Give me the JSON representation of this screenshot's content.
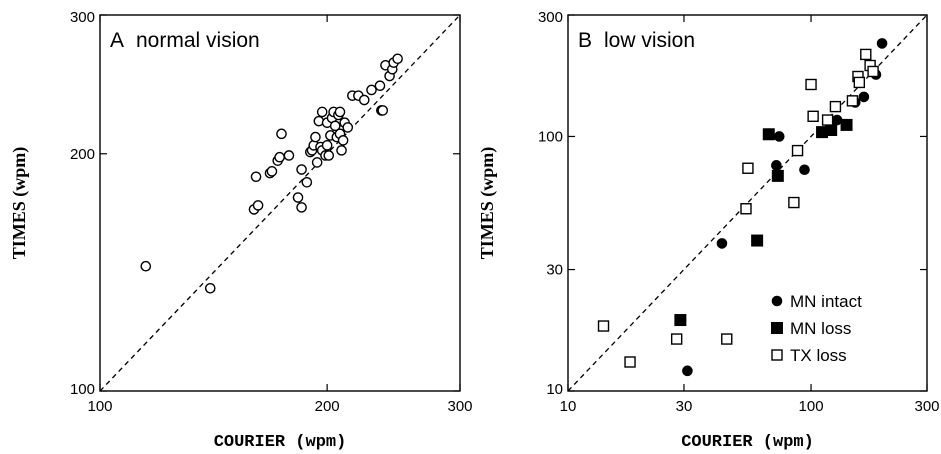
{
  "chart_data": [
    {
      "type": "scatter",
      "panel_letter": "A",
      "title": "normal vision",
      "xlabel": "COURIER (wpm)",
      "ylabel": "TIMES (wpm)",
      "scale": "log",
      "xlim": [
        100,
        300
      ],
      "ylim": [
        100,
        300
      ],
      "xticks": [
        100,
        200,
        300
      ],
      "yticks": [
        100,
        200,
        300
      ],
      "reference_line": "y = x (dashed)",
      "series": [
        {
          "marker": "open-circle",
          "points": [
            [
              115,
              144
            ],
            [
              140,
              135
            ],
            [
              160,
              170
            ],
            [
              162,
              172
            ],
            [
              161,
              187
            ],
            [
              168,
              189
            ],
            [
              169,
              190
            ],
            [
              172,
              196
            ],
            [
              173,
              198
            ],
            [
              174,
              212
            ],
            [
              178,
              199
            ],
            [
              183,
              176
            ],
            [
              185,
              171
            ],
            [
              185,
              191
            ],
            [
              188,
              184
            ],
            [
              190,
              201
            ],
            [
              191,
              202
            ],
            [
              192,
              205
            ],
            [
              193,
              210
            ],
            [
              194,
              195
            ],
            [
              195,
              220
            ],
            [
              196,
              204
            ],
            [
              197,
              202
            ],
            [
              197,
              226
            ],
            [
              199,
              199
            ],
            [
              200,
              205
            ],
            [
              200,
              219
            ],
            [
              201,
              199
            ],
            [
              202,
              211
            ],
            [
              203,
              222
            ],
            [
              204,
              226
            ],
            [
              205,
              217
            ],
            [
              206,
              210
            ],
            [
              207,
              224
            ],
            [
              208,
              212
            ],
            [
              208,
              226
            ],
            [
              209,
              202
            ],
            [
              210,
              208
            ],
            [
              211,
              219
            ],
            [
              213,
              216
            ],
            [
              216,
              237
            ],
            [
              220,
              237
            ],
            [
              224,
              234
            ],
            [
              229,
              241
            ],
            [
              235,
              244
            ],
            [
              236,
              227
            ],
            [
              237,
              227
            ],
            [
              239,
              259
            ],
            [
              242,
              251
            ],
            [
              244,
              256
            ],
            [
              245,
              261
            ],
            [
              248,
              264
            ]
          ]
        }
      ]
    },
    {
      "type": "scatter",
      "panel_letter": "B",
      "title": "low vision",
      "xlabel": "COURIER (wpm)",
      "ylabel": "TIMES (wpm)",
      "scale": "log",
      "xlim": [
        10,
        300
      ],
      "ylim": [
        10,
        300
      ],
      "xticks": [
        10,
        30,
        100,
        300
      ],
      "yticks": [
        10,
        30,
        100,
        300
      ],
      "reference_line": "y = x (dashed)",
      "legend_position": "bottom-right",
      "series": [
        {
          "name": "MN  intact",
          "marker": "filled-circle",
          "points": [
            [
              31,
              12
            ],
            [
              43,
              38
            ],
            [
              72,
              77
            ],
            [
              74,
              100
            ],
            [
              94,
              74
            ],
            [
              112,
              104
            ],
            [
              122,
              114
            ],
            [
              128,
              116
            ],
            [
              152,
              136
            ],
            [
              165,
              143
            ],
            [
              185,
              175
            ],
            [
              196,
              232
            ]
          ]
        },
        {
          "name": "MN  loss",
          "marker": "filled-square",
          "points": [
            [
              29,
              19
            ],
            [
              60,
              39
            ],
            [
              67,
              102
            ],
            [
              73,
              70
            ],
            [
              111,
              104
            ],
            [
              121,
              106
            ],
            [
              140,
              111
            ]
          ]
        },
        {
          "name": "TX  loss",
          "marker": "open-square",
          "points": [
            [
              14,
              18
            ],
            [
              18,
              13
            ],
            [
              28,
              16
            ],
            [
              45,
              16
            ],
            [
              54,
              52
            ],
            [
              55,
              75
            ],
            [
              85,
              55
            ],
            [
              88,
              88
            ],
            [
              100,
              160
            ],
            [
              102,
              120
            ],
            [
              117,
              116
            ],
            [
              126,
              131
            ],
            [
              148,
              138
            ],
            [
              156,
              172
            ],
            [
              158,
              163
            ],
            [
              168,
              210
            ],
            [
              175,
              190
            ],
            [
              180,
              180
            ]
          ]
        }
      ]
    }
  ]
}
